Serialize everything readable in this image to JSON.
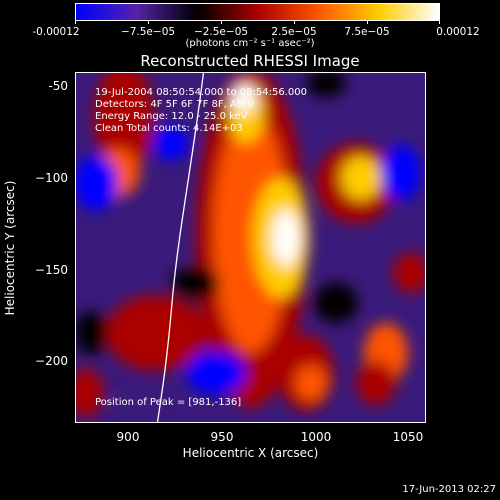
{
  "colorbar": {
    "ticks": [
      "-0.00012",
      "−7.5e−05",
      "−2.5e−05",
      "2.5e−05",
      "7.5e−05",
      "0.00012"
    ],
    "units": "(photons cm⁻² s⁻¹ asec⁻²)",
    "colors": [
      "#0000ff",
      "#5522aa",
      "#000000",
      "#aa0000",
      "#ff5500",
      "#ffcc00",
      "#ffffff"
    ]
  },
  "title": "Reconstructed RHESSI Image",
  "annotations": {
    "time": "19-Jul-2004 08:50:54.000 to 08:54:56.000",
    "detectors": "Detectors: 4F 5F 6F 7F 8F, Att 0",
    "energy": "Energy Range: 12.0 - 25.0 keV",
    "clean": "Clean     Total counts: 4.14E+03",
    "peak": "Position of Peak = [981,-136]"
  },
  "axes": {
    "xlabel": "Heliocentric X (arcsec)",
    "ylabel": "Heliocentric Y (arcsec)",
    "xticks": [
      "900",
      "950",
      "1000",
      "1050"
    ],
    "yticks": [
      "-50",
      "−100",
      "−150",
      "−200"
    ]
  },
  "footer": {
    "date": "17-Jun-2013 02:27"
  }
}
